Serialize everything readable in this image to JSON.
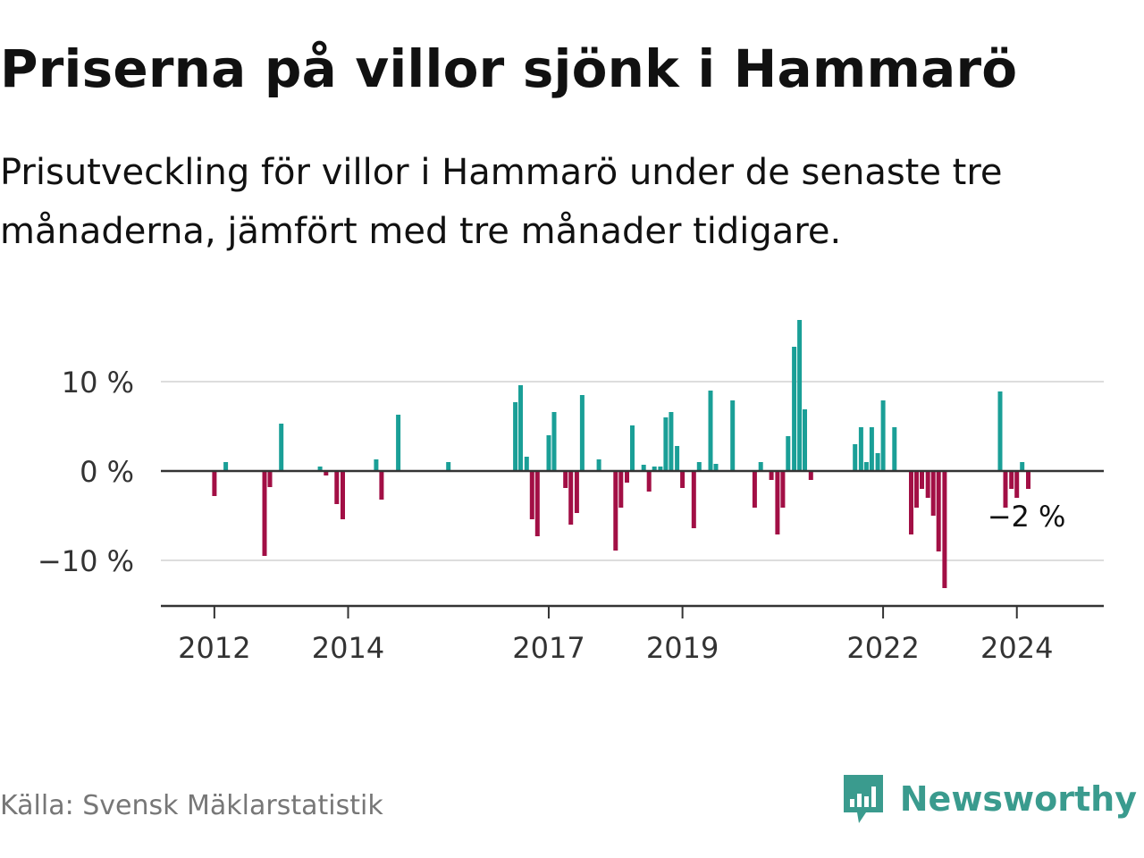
{
  "title": "Priserna på villor sjönk i Hammarö",
  "subtitle": "Prisutveckling för villor i Hammarö under de senaste tre månaderna, jämfört med tre månader tidigare.",
  "source": "Källa: Svensk Mäklarstatistik",
  "logo": {
    "text": "Newsworthy",
    "icon": "newsworthy-chart-icon",
    "color": "#3a9b8e"
  },
  "colors": {
    "positive": "#1a9f97",
    "negative": "#a20f45",
    "grid": "#dddddd",
    "axis": "#333333",
    "text": "#333333"
  },
  "chart_data": {
    "type": "bar",
    "title": "Priserna på villor sjönk i Hammarö",
    "xlabel": "",
    "ylabel": "",
    "ylim": [
      -15,
      17
    ],
    "xlim": [
      2011.2,
      2025.3
    ],
    "grid": true,
    "y_ticks": [
      {
        "value": -10,
        "label": "−10 %"
      },
      {
        "value": 0,
        "label": "0 %"
      },
      {
        "value": 10,
        "label": "10 %"
      }
    ],
    "x_ticks": [
      {
        "value": 2012,
        "label": "2012"
      },
      {
        "value": 2014,
        "label": "2014"
      },
      {
        "value": 2017,
        "label": "2017"
      },
      {
        "value": 2019,
        "label": "2019"
      },
      {
        "value": 2022,
        "label": "2022"
      },
      {
        "value": 2024,
        "label": "2024"
      }
    ],
    "last_value_label": "−2 %",
    "series": [
      {
        "name": "Prisutveckling",
        "points": [
          {
            "x": 2012.0,
            "y": -2.8
          },
          {
            "x": 2012.17,
            "y": 1.0
          },
          {
            "x": 2012.75,
            "y": -9.5
          },
          {
            "x": 2012.83,
            "y": -1.8
          },
          {
            "x": 2013.0,
            "y": 5.3
          },
          {
            "x": 2013.58,
            "y": 0.5
          },
          {
            "x": 2013.67,
            "y": -0.5
          },
          {
            "x": 2013.83,
            "y": -3.7
          },
          {
            "x": 2013.92,
            "y": -5.4
          },
          {
            "x": 2014.42,
            "y": 1.3
          },
          {
            "x": 2014.5,
            "y": -3.2
          },
          {
            "x": 2014.75,
            "y": 6.3
          },
          {
            "x": 2015.5,
            "y": 1.0
          },
          {
            "x": 2016.5,
            "y": 7.7
          },
          {
            "x": 2016.58,
            "y": 9.6
          },
          {
            "x": 2016.67,
            "y": 1.6
          },
          {
            "x": 2016.75,
            "y": -5.4
          },
          {
            "x": 2016.83,
            "y": -7.3
          },
          {
            "x": 2017.0,
            "y": 4.0
          },
          {
            "x": 2017.08,
            "y": 6.6
          },
          {
            "x": 2017.25,
            "y": -1.9
          },
          {
            "x": 2017.33,
            "y": -6.0
          },
          {
            "x": 2017.42,
            "y": -4.7
          },
          {
            "x": 2017.5,
            "y": 8.5
          },
          {
            "x": 2017.75,
            "y": 1.3
          },
          {
            "x": 2018.0,
            "y": -8.9
          },
          {
            "x": 2018.08,
            "y": -4.1
          },
          {
            "x": 2018.17,
            "y": -1.3
          },
          {
            "x": 2018.25,
            "y": 5.1
          },
          {
            "x": 2018.42,
            "y": 0.7
          },
          {
            "x": 2018.5,
            "y": -2.3
          },
          {
            "x": 2018.58,
            "y": 0.5
          },
          {
            "x": 2018.67,
            "y": 0.5
          },
          {
            "x": 2018.75,
            "y": 6.0
          },
          {
            "x": 2018.83,
            "y": 6.6
          },
          {
            "x": 2018.92,
            "y": 2.8
          },
          {
            "x": 2019.0,
            "y": -1.9
          },
          {
            "x": 2019.17,
            "y": -6.4
          },
          {
            "x": 2019.25,
            "y": 1.0
          },
          {
            "x": 2019.42,
            "y": 9.0
          },
          {
            "x": 2019.5,
            "y": 0.8
          },
          {
            "x": 2019.75,
            "y": 7.9
          },
          {
            "x": 2020.08,
            "y": -4.1
          },
          {
            "x": 2020.17,
            "y": 1.0
          },
          {
            "x": 2020.33,
            "y": -1.0
          },
          {
            "x": 2020.42,
            "y": -7.1
          },
          {
            "x": 2020.5,
            "y": -4.1
          },
          {
            "x": 2020.58,
            "y": 3.9
          },
          {
            "x": 2020.67,
            "y": 13.9
          },
          {
            "x": 2020.75,
            "y": 16.9
          },
          {
            "x": 2020.83,
            "y": 6.9
          },
          {
            "x": 2020.92,
            "y": -1.0
          },
          {
            "x": 2021.58,
            "y": 3.0
          },
          {
            "x": 2021.67,
            "y": 4.9
          },
          {
            "x": 2021.75,
            "y": 1.0
          },
          {
            "x": 2021.83,
            "y": 4.9
          },
          {
            "x": 2021.92,
            "y": 2.0
          },
          {
            "x": 2022.0,
            "y": 7.9
          },
          {
            "x": 2022.17,
            "y": 4.9
          },
          {
            "x": 2022.42,
            "y": -7.1
          },
          {
            "x": 2022.5,
            "y": -4.1
          },
          {
            "x": 2022.58,
            "y": -2.0
          },
          {
            "x": 2022.67,
            "y": -3.0
          },
          {
            "x": 2022.75,
            "y": -5.0
          },
          {
            "x": 2022.83,
            "y": -9.0
          },
          {
            "x": 2022.92,
            "y": -13.1
          },
          {
            "x": 2023.75,
            "y": 8.9
          },
          {
            "x": 2023.83,
            "y": -4.1
          },
          {
            "x": 2023.92,
            "y": -2.0
          },
          {
            "x": 2024.0,
            "y": -3.0
          },
          {
            "x": 2024.08,
            "y": 1.0
          },
          {
            "x": 2024.17,
            "y": -2.0
          }
        ]
      }
    ]
  }
}
